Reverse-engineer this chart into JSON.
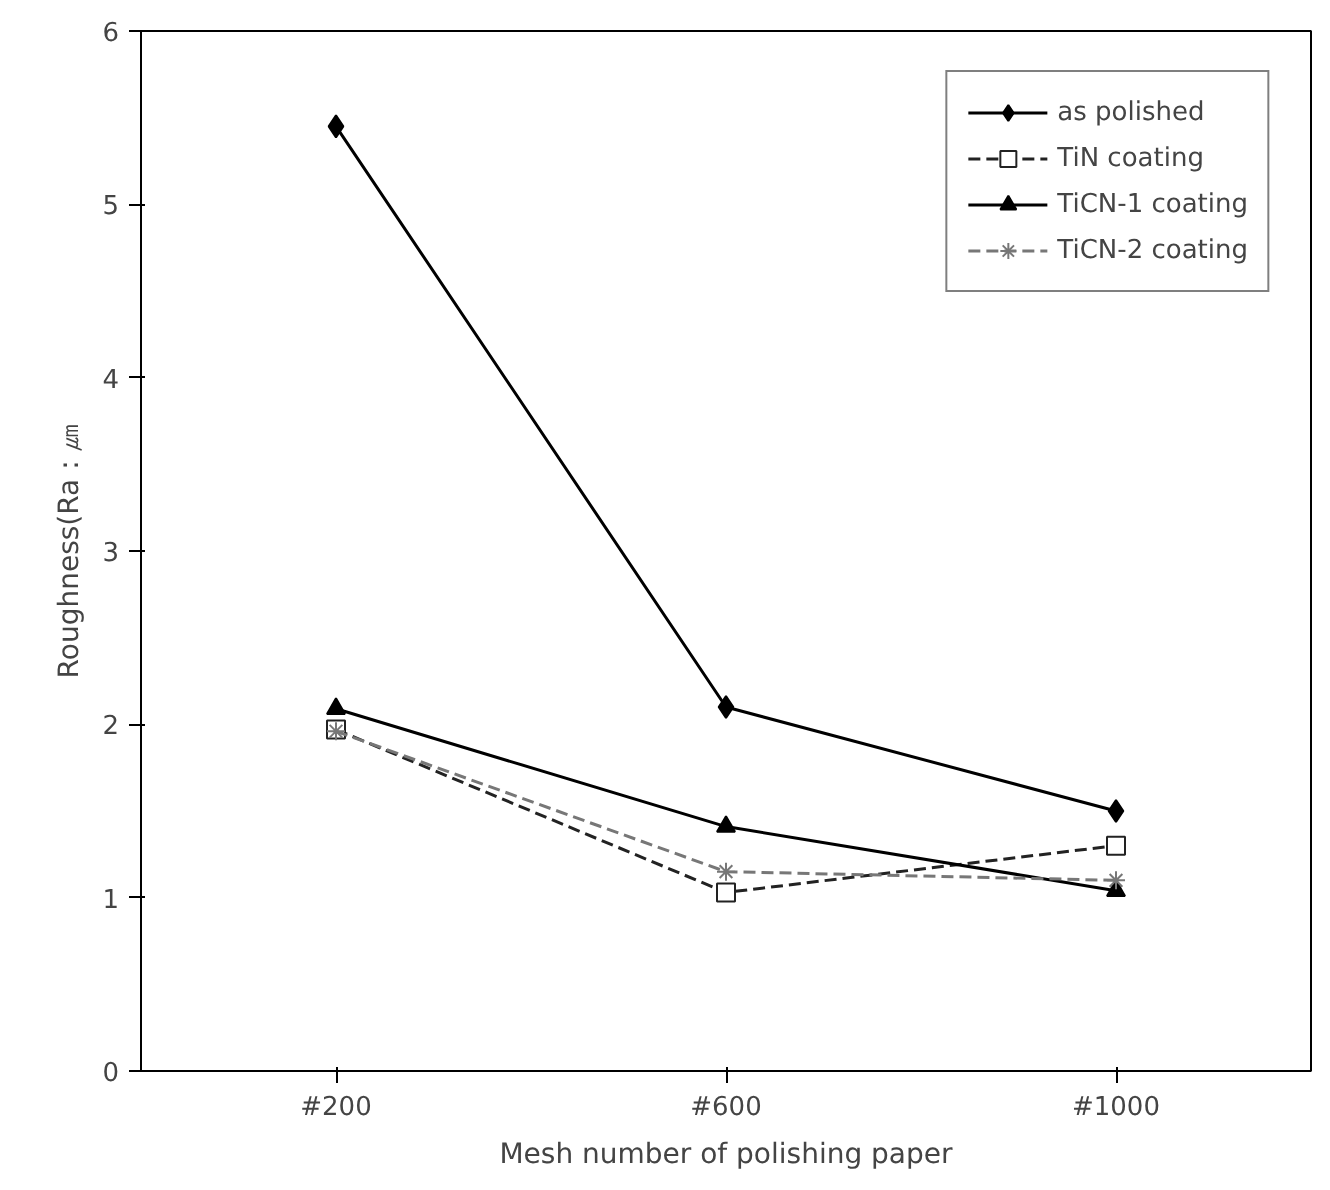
{
  "chart_data": {
    "type": "line",
    "xlabel": "Mesh number of polishing paper",
    "ylabel": "Roughness(Ra : ㎛",
    "categories": [
      "#200",
      "#600",
      "#1000"
    ],
    "series": [
      {
        "name": "as polished",
        "color": "#000000",
        "marker": "diamond",
        "line_style": "solid",
        "values": [
          5.45,
          2.1,
          1.5
        ]
      },
      {
        "name": "TiN coating",
        "color": "#222222",
        "marker": "square",
        "line_style": "dashed",
        "values": [
          1.97,
          1.03,
          1.3
        ]
      },
      {
        "name": "TiCN-1 coating",
        "color": "#000000",
        "marker": "triangle",
        "line_style": "solid",
        "values": [
          2.09,
          1.41,
          1.04
        ]
      },
      {
        "name": "TiCN-2 coating",
        "color": "#777777",
        "marker": "cross",
        "line_style": "dashed",
        "values": [
          1.96,
          1.15,
          1.1
        ]
      }
    ],
    "ylim": [
      0,
      6
    ],
    "yticks": [
      0,
      1,
      2,
      3,
      4,
      5,
      6
    ],
    "grid": false,
    "legend": "top right"
  }
}
